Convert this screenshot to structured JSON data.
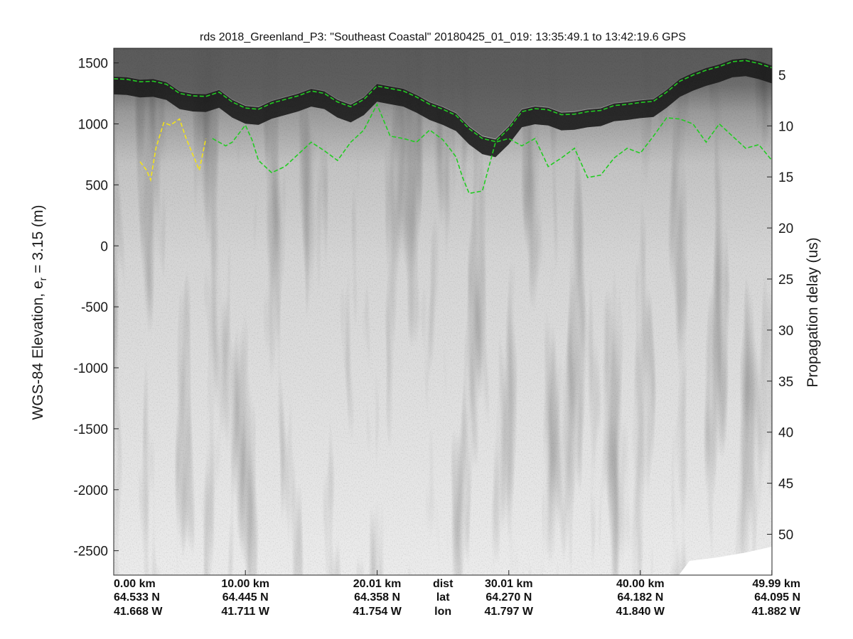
{
  "chart_data": {
    "type": "heatmap",
    "title": "rds 2018_Greenland_P3: \"Southeast Coastal\"  20180425_01_019: 13:35:49.1 to 13:42:19.6 GPS",
    "ylabel_left": "WGS-84 Elevation, e",
    "ylabel_left_sub": "r",
    "ylabel_left_suffix": " = 3.15 (m)",
    "ylabel_right": "Propagation delay (us)",
    "colormap": "grayscale",
    "x_range_km": [
      0,
      50
    ],
    "left_axis": {
      "range": [
        -2700,
        1620
      ],
      "ticks": [
        1500,
        1000,
        500,
        0,
        -500,
        -1000,
        -1500,
        -2000,
        -2500
      ],
      "tick_labels": [
        "1500",
        "1000",
        "500",
        "0",
        "-500",
        "-1000",
        "-1500",
        "-2000",
        "-2500"
      ]
    },
    "right_axis": {
      "range": [
        2.4,
        54.0
      ],
      "ticks": [
        5,
        10,
        15,
        20,
        25,
        30,
        35,
        40,
        45,
        50
      ],
      "tick_labels": [
        "5",
        "10",
        "15",
        "20",
        "25",
        "30",
        "35",
        "40",
        "45",
        "50"
      ]
    },
    "bottom_axis": {
      "ticks": [
        {
          "km": 0.0,
          "dist": "0.00 km",
          "lat": "64.533 N",
          "lon": "41.668 W"
        },
        {
          "km": 10.0,
          "dist": "10.00 km",
          "lat": "64.445 N",
          "lon": "41.711 W"
        },
        {
          "km": 20.01,
          "dist": "20.01 km",
          "lat": "64.358 N",
          "lon": "41.754 W"
        },
        {
          "km": 30.01,
          "dist": "30.01 km",
          "lat": "64.270 N",
          "lon": "41.797 W"
        },
        {
          "km": 40.0,
          "dist": "40.00 km",
          "lat": "64.182 N",
          "lon": "41.840 W"
        },
        {
          "km": 49.99,
          "dist": "49.99 km",
          "lat": "64.095 N",
          "lon": "41.882 W"
        }
      ],
      "row_names": {
        "dist": "dist",
        "lat": "lat",
        "lon": "lon"
      }
    },
    "series": [
      {
        "color": "#22cc22",
        "style": "dashed",
        "x": [
          0,
          1,
          2,
          3,
          4,
          5,
          6,
          7,
          8,
          9,
          10,
          11,
          12,
          13,
          14,
          15,
          16,
          17,
          18,
          19,
          20,
          21,
          22,
          23,
          24,
          25,
          26,
          27,
          28,
          29,
          30,
          31,
          32,
          33,
          34,
          35,
          36,
          37,
          38,
          39,
          40,
          41,
          42,
          43,
          44,
          45,
          46,
          47,
          48,
          49,
          50
        ],
        "y": [
          1370,
          1365,
          1345,
          1350,
          1325,
          1250,
          1230,
          1225,
          1260,
          1180,
          1130,
          1120,
          1170,
          1200,
          1230,
          1270,
          1250,
          1180,
          1140,
          1200,
          1310,
          1290,
          1270,
          1220,
          1160,
          1120,
          1070,
          960,
          880,
          855,
          960,
          1100,
          1125,
          1115,
          1075,
          1080,
          1100,
          1110,
          1150,
          1160,
          1175,
          1185,
          1260,
          1350,
          1400,
          1440,
          1470,
          1510,
          1520,
          1495,
          1460
        ]
      },
      {
        "color": "#22cc22",
        "style": "dashed",
        "x": [
          7.5,
          8.5,
          9,
          10,
          10.5,
          11,
          12,
          13,
          14,
          15,
          16,
          17,
          18,
          19,
          20,
          21,
          22,
          23,
          24,
          25,
          25.5,
          26,
          26.5,
          27,
          28,
          29,
          30,
          31,
          32,
          33,
          34,
          35,
          36,
          37,
          38,
          39,
          40,
          41,
          42,
          43,
          44,
          45,
          46,
          47,
          48,
          49,
          50
        ],
        "y": [
          880,
          820,
          850,
          990,
          870,
          700,
          600,
          650,
          750,
          850,
          780,
          700,
          850,
          950,
          1160,
          900,
          880,
          850,
          950,
          870,
          800,
          730,
          560,
          430,
          450,
          850,
          880,
          820,
          880,
          650,
          720,
          800,
          560,
          580,
          720,
          800,
          760,
          900,
          1050,
          1040,
          1000,
          850,
          1000,
          900,
          800,
          830,
          700
        ]
      },
      {
        "color": "#f2e21a",
        "style": "dashed",
        "x": [
          2.0,
          2.5,
          2.8,
          3.2,
          3.8,
          4.3,
          5.0,
          5.5,
          6.0,
          6.5,
          7.0
        ],
        "y": [
          690,
          620,
          540,
          800,
          1010,
          990,
          1040,
          880,
          750,
          620,
          880
        ]
      }
    ]
  }
}
